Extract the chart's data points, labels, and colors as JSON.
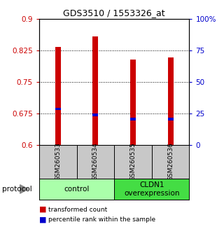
{
  "title": "GDS3510 / 1553326_at",
  "samples": [
    "GSM260533",
    "GSM260534",
    "GSM260535",
    "GSM260536"
  ],
  "red_values": [
    0.833,
    0.858,
    0.803,
    0.808
  ],
  "blue_values": [
    0.686,
    0.672,
    0.662,
    0.662
  ],
  "ylim_left": [
    0.6,
    0.9
  ],
  "ylim_right": [
    0,
    100
  ],
  "yticks_left": [
    0.6,
    0.675,
    0.75,
    0.825,
    0.9
  ],
  "ytick_labels_left": [
    "0.6",
    "0.675",
    "0.75",
    "0.825",
    "0.9"
  ],
  "yticks_right": [
    0,
    25,
    50,
    75,
    100
  ],
  "ytick_labels_right": [
    "0",
    "25",
    "50",
    "75",
    "100%"
  ],
  "groups": [
    {
      "label": "control",
      "indices": [
        0,
        1
      ],
      "color": "#aaffaa"
    },
    {
      "label": "CLDN1\noverexpression",
      "indices": [
        2,
        3
      ],
      "color": "#44dd44"
    }
  ],
  "bar_width": 0.15,
  "bar_color": "#CC0000",
  "blue_color": "#0000CC",
  "background_color": "#ffffff",
  "protocol_label": "protocol",
  "legend_red": "transformed count",
  "legend_blue": "percentile rank within the sample",
  "sample_box_color": "#C8C8C8"
}
